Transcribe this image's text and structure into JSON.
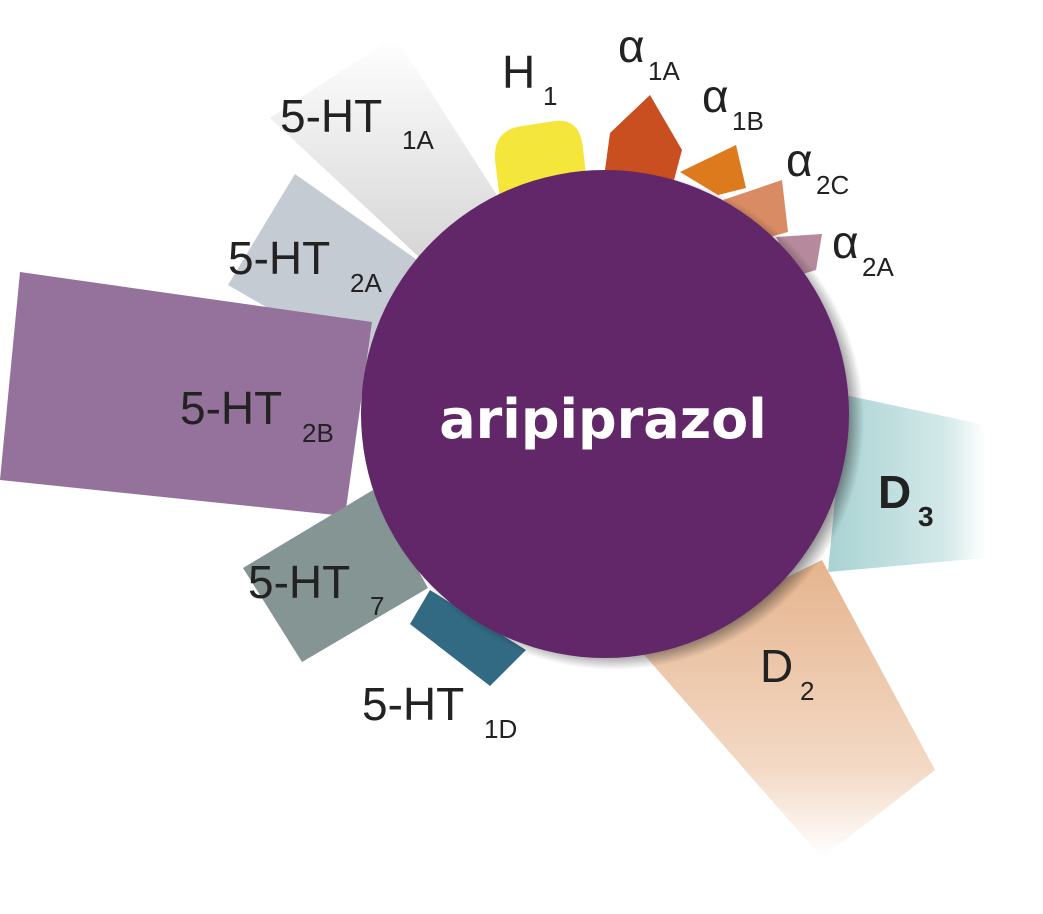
{
  "center": {
    "label": "aripiprazol",
    "color": "#622769",
    "shadow": "#2b2b2b"
  },
  "receptors": {
    "ht1a": {
      "base": "5-HT",
      "sub": "1A",
      "color": "#d9d9d9"
    },
    "ht2a": {
      "base": "5-HT",
      "sub": "2A",
      "color": "#c5cbd3"
    },
    "ht2b": {
      "base": "5-HT",
      "sub": "2B",
      "color": "#94729c"
    },
    "ht7": {
      "base": "5-HT",
      "sub": "7",
      "color": "#849594"
    },
    "ht1d": {
      "base": "5-HT",
      "sub": "1D",
      "color": "#326a84"
    },
    "d2": {
      "base": "D",
      "sub": "2",
      "color": "#e8bb98"
    },
    "d3": {
      "base": "D",
      "sub": "3",
      "color": "#a9d2d2"
    },
    "h1": {
      "base": "H",
      "sub": "1",
      "color": "#f5e63b"
    },
    "a1a": {
      "base": "α",
      "sub": "1A",
      "color": "#c94f20"
    },
    "a1b": {
      "base": "α",
      "sub": "1B",
      "color": "#de7a1e"
    },
    "a2c": {
      "base": "α",
      "sub": "2C",
      "color": "#d98c64"
    },
    "a2a": {
      "base": "α",
      "sub": "2A",
      "color": "#b68a9c"
    }
  }
}
